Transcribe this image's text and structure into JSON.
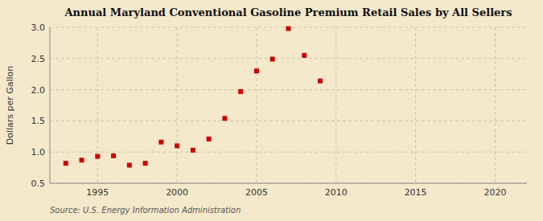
{
  "chart_data": {
    "type": "scatter",
    "title": "Annual Maryland Conventional Gasoline Premium Retail Sales by All Sellers",
    "y_label": "Dollars per Gallon",
    "annotations": [
      "Source: U.S. Energy Information Administration"
    ],
    "x": [
      1993,
      1994,
      1995,
      1996,
      1997,
      1998,
      1999,
      2000,
      2001,
      2002,
      2003,
      2004,
      2005,
      2006,
      2007,
      2008,
      2009
    ],
    "values": [
      0.82,
      0.87,
      0.93,
      0.94,
      0.79,
      0.82,
      1.16,
      1.1,
      1.03,
      1.21,
      1.54,
      1.97,
      2.3,
      2.49,
      2.98,
      2.55,
      2.14
    ],
    "color": "#cc0000",
    "marker": "square",
    "xlim": [
      1992,
      2022
    ],
    "ylim": [
      0.5,
      3.0
    ],
    "xticks": [
      1995,
      2000,
      2005,
      2010,
      2015,
      2020
    ],
    "yticks": [
      0.5,
      {
        "value": 1.0,
        "label": "1.0"
      },
      1.5,
      {
        "value": 2.0,
        "label": "2.0"
      },
      2.5,
      {
        "value": 3.0,
        "label": "3.0"
      }
    ],
    "grid": true
  }
}
